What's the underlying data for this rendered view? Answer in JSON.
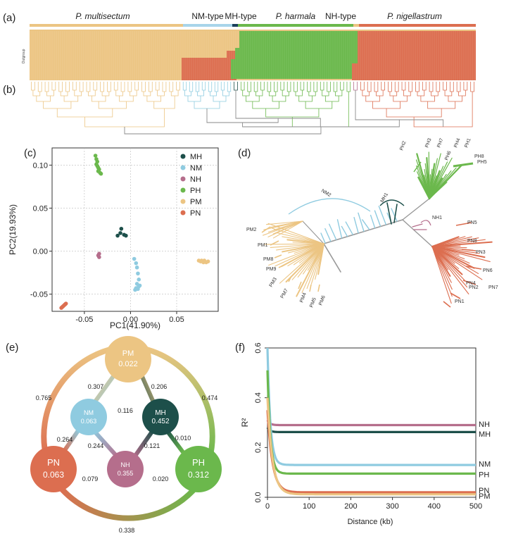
{
  "figure": {
    "panel_labels": {
      "a": "(a)",
      "b": "(b)",
      "c": "(c)",
      "d": "(d)",
      "e": "(e)",
      "f": "(f)"
    }
  },
  "colors": {
    "MH": "#1d4f4a",
    "NM": "#8fcbe0",
    "NH": "#b56e8c",
    "PH": "#6bb84c",
    "PM": "#ecc583",
    "PN": "#dc6e50",
    "NM_bar": "#a8d4ea",
    "MH_bar": "#1a3f5c"
  },
  "panel_a": {
    "groups": [
      {
        "label": "P. multisectum",
        "italic": true,
        "color_key": "PM"
      },
      {
        "label": "NM-type",
        "italic": false,
        "color_key": "NM"
      },
      {
        "label": "MH-type",
        "italic": false,
        "color_key": "MH"
      },
      {
        "label": "P. harmala",
        "italic": true,
        "color_key": "PH"
      },
      {
        "label": "NH-type",
        "italic": false,
        "color_key": "PM"
      },
      {
        "label": "P. nigellastrum",
        "italic": true,
        "color_key": "PN"
      }
    ],
    "side_label": "Outgroup"
  },
  "chart_data": [
    {
      "type": "scatter",
      "panel": "c",
      "xlabel": "PC1(41.90%)",
      "ylabel": "PC2(19.93%)",
      "xlim": [
        -0.085,
        0.095
      ],
      "ylim": [
        -0.07,
        0.12
      ],
      "xticks": [
        -0.05,
        0.0,
        0.05
      ],
      "xtick_labels": [
        "-0.05",
        "0.00",
        "0.05"
      ],
      "yticks": [
        -0.05,
        0.0,
        0.05,
        0.1
      ],
      "ytick_labels": [
        "-0.05",
        "0.00",
        "0.05",
        "0.10"
      ],
      "legend": [
        "MH",
        "NM",
        "NH",
        "PH",
        "PM",
        "PN"
      ],
      "legend_position": "top-right",
      "series": [
        {
          "name": "MH",
          "points": [
            [
              -0.01,
              0.026
            ],
            [
              -0.011,
              0.021
            ],
            [
              -0.007,
              0.019
            ],
            [
              -0.014,
              0.018
            ],
            [
              -0.005,
              0.018
            ]
          ]
        },
        {
          "name": "NM",
          "points": [
            [
              0.004,
              -0.009
            ],
            [
              0.006,
              -0.014
            ],
            [
              0.007,
              -0.019
            ],
            [
              0.008,
              -0.026
            ],
            [
              0.009,
              -0.033
            ],
            [
              0.007,
              -0.038
            ],
            [
              0.009,
              -0.041
            ],
            [
              0.006,
              -0.043
            ],
            [
              0.005,
              -0.045
            ],
            [
              0.01,
              -0.04
            ],
            [
              0.008,
              -0.044
            ]
          ]
        },
        {
          "name": "NH",
          "points": [
            [
              -0.034,
              -0.003
            ],
            [
              -0.035,
              -0.005
            ],
            [
              -0.034,
              -0.007
            ]
          ]
        },
        {
          "name": "PH",
          "points": [
            [
              -0.038,
              0.111
            ],
            [
              -0.037,
              0.107
            ],
            [
              -0.036,
              0.104
            ],
            [
              -0.037,
              0.101
            ],
            [
              -0.036,
              0.099
            ],
            [
              -0.035,
              0.097
            ],
            [
              -0.034,
              0.095
            ],
            [
              -0.035,
              0.093
            ],
            [
              -0.033,
              0.091
            ],
            [
              -0.032,
              0.09
            ]
          ]
        },
        {
          "name": "PM",
          "points": [
            [
              0.074,
              -0.011
            ],
            [
              0.076,
              -0.012
            ],
            [
              0.078,
              -0.012
            ],
            [
              0.08,
              -0.011
            ],
            [
              0.082,
              -0.013
            ],
            [
              0.079,
              -0.013
            ],
            [
              0.084,
              -0.012
            ],
            [
              0.077,
              -0.011
            ]
          ]
        },
        {
          "name": "PN",
          "points": [
            [
              -0.075,
              -0.066
            ],
            [
              -0.074,
              -0.065
            ],
            [
              -0.073,
              -0.064
            ],
            [
              -0.072,
              -0.063
            ],
            [
              -0.071,
              -0.062
            ],
            [
              -0.07,
              -0.061
            ]
          ]
        }
      ]
    },
    {
      "type": "line",
      "panel": "f",
      "xlabel": "Distance (kb)",
      "ylabel": "R²",
      "xlim": [
        0,
        500
      ],
      "ylim": [
        0,
        0.6
      ],
      "xticks": [
        0,
        100,
        200,
        300,
        400,
        500
      ],
      "yticks": [
        0.0,
        0.2,
        0.4,
        0.6
      ],
      "ytick_labels": [
        "0.0",
        "0.2",
        "0.4",
        "0.6"
      ],
      "series": [
        {
          "name": "NH",
          "start": 0.31,
          "plateau": 0.29,
          "decay": 6
        },
        {
          "name": "MH",
          "start": 0.28,
          "plateau": 0.262,
          "decay": 6
        },
        {
          "name": "NM",
          "start": 0.6,
          "plateau": 0.13,
          "decay": 7
        },
        {
          "name": "PH",
          "start": 0.51,
          "plateau": 0.095,
          "decay": 7
        },
        {
          "name": "PN",
          "start": 0.35,
          "plateau": 0.02,
          "decay": 12
        },
        {
          "name": "PM",
          "start": 0.4,
          "plateau": 0.012,
          "decay": 12
        }
      ]
    }
  ],
  "panel_d": {
    "tip_labels": [
      "NM2",
      "MH1",
      "NH1",
      "PH1",
      "PH2",
      "PH3",
      "PH4",
      "PH5",
      "PH6",
      "PH7",
      "PH8",
      "PM1",
      "PM2",
      "PM3",
      "PM4",
      "PM5",
      "PM6",
      "PM7",
      "PM8",
      "PM9",
      "PN1",
      "PN2",
      "PN3",
      "PN4",
      "PN5",
      "PN6",
      "PN7",
      "PN8"
    ]
  },
  "panel_e": {
    "nodes": [
      {
        "id": "PM",
        "value": "0.022"
      },
      {
        "id": "NM",
        "value": "0.063"
      },
      {
        "id": "MH",
        "value": "0.452"
      },
      {
        "id": "PN",
        "value": "0.063"
      },
      {
        "id": "NH",
        "value": "0.355"
      },
      {
        "id": "PH",
        "value": "0.312"
      }
    ],
    "edges": [
      {
        "pair": "PM-NM",
        "value": "0.307"
      },
      {
        "pair": "PM-MH",
        "value": "0.206"
      },
      {
        "pair": "NM-MH",
        "value": "0.116"
      },
      {
        "pair": "NM-NH",
        "value": "0.244"
      },
      {
        "pair": "MH-NH",
        "value": "0.121"
      },
      {
        "pair": "NM-PN",
        "value": "0.264"
      },
      {
        "pair": "MH-PH",
        "value": "0.010"
      },
      {
        "pair": "PN-NH",
        "value": "0.079"
      },
      {
        "pair": "NH-PH",
        "value": "0.020"
      },
      {
        "pair": "PM-PN",
        "value": "0.765"
      },
      {
        "pair": "PM-PH",
        "value": "0.474"
      },
      {
        "pair": "PN-PH",
        "value": "0.338"
      }
    ]
  }
}
